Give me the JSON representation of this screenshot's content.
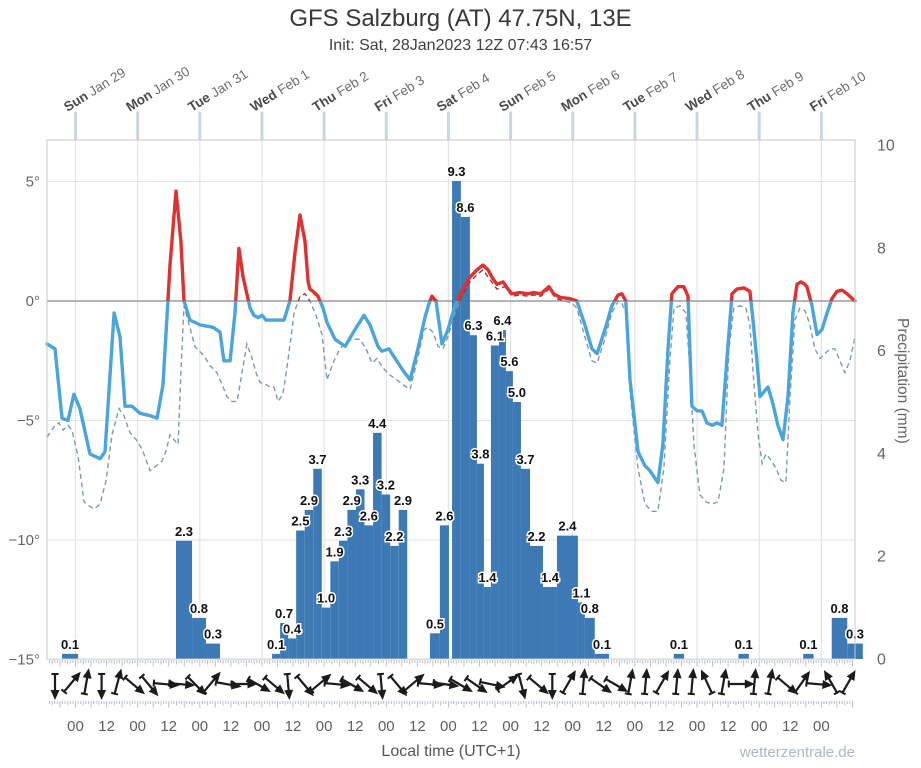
{
  "header": {
    "title": "GFS Salzburg (AT) 47.75N, 13E",
    "subtitle": "Init: Sat, 28Jan2023 12Z 07:43 16:57"
  },
  "footer": {
    "xlabel": "Local time (UTC+1)",
    "watermark": "wetterzentrale.de"
  },
  "axes": {
    "temp_tick_labels": [
      "5°",
      "0°",
      "−5°",
      "−10°",
      "−15°"
    ],
    "temp_tick_values": [
      5,
      0,
      -5,
      -10,
      -15
    ],
    "precip_tick_values": [
      10,
      8,
      6,
      4,
      2,
      0
    ],
    "precip_axis_label": "Precipitation (mm)",
    "time_tick_pattern": [
      "00",
      "12"
    ],
    "day_labels": [
      {
        "day": "Sun",
        "date": "Jan 29"
      },
      {
        "day": "Mon",
        "date": "Jan 30"
      },
      {
        "day": "Tue",
        "date": "Jan 31"
      },
      {
        "day": "Wed",
        "date": "Feb 1"
      },
      {
        "day": "Thu",
        "date": "Feb 2"
      },
      {
        "day": "Fri",
        "date": "Feb 3"
      },
      {
        "day": "Sat",
        "date": "Feb 4"
      },
      {
        "day": "Sun",
        "date": "Feb 5"
      },
      {
        "day": "Mon",
        "date": "Feb 6"
      },
      {
        "day": "Tue",
        "date": "Feb 7"
      },
      {
        "day": "Wed",
        "date": "Feb 8"
      },
      {
        "day": "Thu",
        "date": "Feb 9"
      },
      {
        "day": "Fri",
        "date": "Feb 10"
      }
    ]
  },
  "colors": {
    "temp_above": "#de3131",
    "temp_below": "#4aa5dc",
    "dew_above": "#a43636",
    "dew_below": "#7e99ad",
    "bar": "#3d7ab5",
    "grid": "#e3e3e3",
    "zero_line": "#9b9b9b",
    "border": "#c9c9c9",
    "day_stub": "#ccd6e2",
    "tick": "#b7c0c8",
    "arrow": "#1b1b1b"
  },
  "chart_data": {
    "type": "meteogram (line + bar)",
    "title": "GFS Salzburg (AT) 47.75N, 13E",
    "x_unit": "hours since Sun 29 Jan 2023 00:00 local time (UTC+1)",
    "x_range": [
      -11,
      301
    ],
    "temp_axis": {
      "unit": "°C",
      "ticks": [
        5,
        0,
        -5,
        -10,
        -15
      ]
    },
    "precip_axis": {
      "unit": "mm",
      "ticks": [
        10,
        8,
        6,
        4,
        2,
        0
      ],
      "range": [
        0,
        10
      ]
    },
    "temperature_2m": [
      [
        -11,
        -1.8
      ],
      [
        -7.9,
        -2.0
      ],
      [
        -5.2,
        -4.9
      ],
      [
        -2.9,
        -5.0
      ],
      [
        -0.6,
        -3.9
      ],
      [
        1.7,
        -4.5
      ],
      [
        5.6,
        -6.4
      ],
      [
        9.5,
        -6.6
      ],
      [
        11.4,
        -6.3
      ],
      [
        14.9,
        -0.5
      ],
      [
        17.2,
        -1.5
      ],
      [
        19.1,
        -4.4
      ],
      [
        21.8,
        -4.4
      ],
      [
        24.9,
        -4.7
      ],
      [
        28.8,
        -4.8
      ],
      [
        31.5,
        -4.9
      ],
      [
        33.8,
        -3.5
      ],
      [
        36.5,
        1.5
      ],
      [
        38.8,
        4.6
      ],
      [
        40.7,
        2.5
      ],
      [
        41.9,
        0.0
      ],
      [
        44.2,
        -0.8
      ],
      [
        48.1,
        -1.0
      ],
      [
        53.1,
        -1.1
      ],
      [
        55.8,
        -1.3
      ],
      [
        57.3,
        -2.5
      ],
      [
        59.7,
        -2.5
      ],
      [
        61.6,
        -0.5
      ],
      [
        63.1,
        2.2
      ],
      [
        64.7,
        1.0
      ],
      [
        67.4,
        -0.3
      ],
      [
        68.9,
        -0.6
      ],
      [
        70.5,
        -0.7
      ],
      [
        72.0,
        -0.6
      ],
      [
        73.6,
        -0.8
      ],
      [
        77.0,
        -0.8
      ],
      [
        80.5,
        -0.8
      ],
      [
        82.8,
        0.0
      ],
      [
        84.7,
        2.0
      ],
      [
        86.7,
        3.6
      ],
      [
        88.6,
        2.5
      ],
      [
        89.8,
        0.8
      ],
      [
        90.5,
        0.5
      ],
      [
        91.7,
        0.4
      ],
      [
        93.6,
        0.2
      ],
      [
        95.6,
        -0.3
      ],
      [
        97.1,
        -0.9
      ],
      [
        100.2,
        -1.6
      ],
      [
        104.1,
        -1.9
      ],
      [
        107.9,
        -1.2
      ],
      [
        111.4,
        -0.6
      ],
      [
        113.7,
        -1.0
      ],
      [
        116.8,
        -1.9
      ],
      [
        118.3,
        -2.1
      ],
      [
        121.0,
        -2.0
      ],
      [
        123.4,
        -2.4
      ],
      [
        126.4,
        -2.9
      ],
      [
        129.2,
        -3.3
      ],
      [
        132.2,
        -2.0
      ],
      [
        134.9,
        -0.7
      ],
      [
        136.5,
        -0.1
      ],
      [
        137.6,
        0.2
      ],
      [
        139.2,
        0.0
      ],
      [
        141.5,
        -1.8
      ],
      [
        143.8,
        -1.2
      ],
      [
        146.5,
        -0.2
      ],
      [
        149.2,
        0.4
      ],
      [
        152.3,
        1.0
      ],
      [
        155.0,
        1.3
      ],
      [
        157.3,
        1.5
      ],
      [
        159.3,
        1.3
      ],
      [
        160.8,
        1.0
      ],
      [
        162.7,
        0.7
      ],
      [
        165.1,
        0.8
      ],
      [
        167.0,
        0.5
      ],
      [
        168.5,
        0.3
      ],
      [
        171.6,
        0.35
      ],
      [
        174.7,
        0.3
      ],
      [
        177.0,
        0.35
      ],
      [
        179.7,
        0.3
      ],
      [
        182.8,
        0.6
      ],
      [
        184.7,
        0.3
      ],
      [
        187.1,
        0.15
      ],
      [
        190.9,
        0.1
      ],
      [
        193.6,
        0.0
      ],
      [
        196.7,
        -1.0
      ],
      [
        199.4,
        -2.0
      ],
      [
        201.4,
        -2.2
      ],
      [
        204.4,
        -1.2
      ],
      [
        207.1,
        -0.2
      ],
      [
        209.5,
        0.25
      ],
      [
        211.0,
        0.3
      ],
      [
        212.5,
        0.0
      ],
      [
        214.1,
        -3.3
      ],
      [
        217.2,
        -6.3
      ],
      [
        219.9,
        -6.9
      ],
      [
        221.8,
        -7.1
      ],
      [
        224.9,
        -7.6
      ],
      [
        226.8,
        -6.0
      ],
      [
        228.8,
        -2.0
      ],
      [
        230.3,
        0.3
      ],
      [
        232.6,
        0.6
      ],
      [
        234.9,
        0.6
      ],
      [
        236.5,
        0.2
      ],
      [
        238.0,
        -4.4
      ],
      [
        240.0,
        -4.6
      ],
      [
        241.9,
        -4.6
      ],
      [
        243.8,
        -5.1
      ],
      [
        245.8,
        -5.2
      ],
      [
        247.7,
        -5.1
      ],
      [
        249.6,
        -5.2
      ],
      [
        251.5,
        -2.5
      ],
      [
        253.5,
        0.3
      ],
      [
        255.4,
        0.5
      ],
      [
        258.1,
        0.55
      ],
      [
        260.4,
        0.4
      ],
      [
        261.6,
        -0.8
      ],
      [
        263.1,
        -2.5
      ],
      [
        264.3,
        -4.0
      ],
      [
        265.8,
        -3.8
      ],
      [
        267.4,
        -3.6
      ],
      [
        269.3,
        -4.3
      ],
      [
        271.2,
        -5.2
      ],
      [
        273.2,
        -5.8
      ],
      [
        275.1,
        -4.0
      ],
      [
        277.0,
        -0.5
      ],
      [
        278.6,
        0.7
      ],
      [
        280.1,
        0.8
      ],
      [
        281.7,
        0.7
      ],
      [
        282.4,
        0.6
      ],
      [
        284.4,
        -0.2
      ],
      [
        286.3,
        -1.4
      ],
      [
        288.2,
        -1.2
      ],
      [
        290.2,
        -0.5
      ],
      [
        292.1,
        0.1
      ],
      [
        294.0,
        0.4
      ],
      [
        296.0,
        0.45
      ],
      [
        297.9,
        0.3
      ],
      [
        299.4,
        0.15
      ],
      [
        301.0,
        0.0
      ]
    ],
    "dewpoint_2m": [
      [
        -11,
        -5.7
      ],
      [
        -7.9,
        -5.2
      ],
      [
        -6.4,
        -5.1
      ],
      [
        -4.8,
        -5.4
      ],
      [
        -2.9,
        -5.2
      ],
      [
        -1.4,
        -5.4
      ],
      [
        1.0,
        -6.5
      ],
      [
        3.3,
        -8.4
      ],
      [
        5.6,
        -8.6
      ],
      [
        7.1,
        -8.7
      ],
      [
        9.5,
        -8.5
      ],
      [
        11.8,
        -7.5
      ],
      [
        14.1,
        -5.6
      ],
      [
        16.8,
        -4.5
      ],
      [
        18.7,
        -4.8
      ],
      [
        21.0,
        -5.5
      ],
      [
        23.4,
        -5.8
      ],
      [
        25.7,
        -6.2
      ],
      [
        28.8,
        -7.1
      ],
      [
        31.1,
        -6.9
      ],
      [
        33.4,
        -6.7
      ],
      [
        34.9,
        -6.3
      ],
      [
        36.5,
        -5.6
      ],
      [
        38.0,
        -5.8
      ],
      [
        39.6,
        -6.0
      ],
      [
        40.7,
        -3.0
      ],
      [
        41.9,
        -0.2
      ],
      [
        43.4,
        -0.8
      ],
      [
        46.1,
        -1.9
      ],
      [
        49.6,
        -2.3
      ],
      [
        51.9,
        -2.7
      ],
      [
        54.6,
        -3.0
      ],
      [
        56.6,
        -3.5
      ],
      [
        58.5,
        -4.0
      ],
      [
        60.4,
        -4.2
      ],
      [
        62.4,
        -4.2
      ],
      [
        64.3,
        -3.0
      ],
      [
        66.2,
        -1.8
      ],
      [
        68.2,
        -2.4
      ],
      [
        69.7,
        -3.0
      ],
      [
        71.2,
        -3.4
      ],
      [
        73.6,
        -3.5
      ],
      [
        75.1,
        -3.6
      ],
      [
        76.6,
        -3.6
      ],
      [
        78.2,
        -4.2
      ],
      [
        80.1,
        -3.9
      ],
      [
        82.0,
        -2.5
      ],
      [
        84.4,
        -0.5
      ],
      [
        86.7,
        0.2
      ],
      [
        88.6,
        0.3
      ],
      [
        90.5,
        0.0
      ],
      [
        92.9,
        -0.6
      ],
      [
        95.2,
        -1.4
      ],
      [
        97.1,
        -3.3
      ],
      [
        99.4,
        -2.6
      ],
      [
        102.1,
        -2.0
      ],
      [
        104.8,
        -1.7
      ],
      [
        106.8,
        -1.6
      ],
      [
        109.8,
        -1.6
      ],
      [
        112.2,
        -2.0
      ],
      [
        114.5,
        -2.6
      ],
      [
        116.4,
        -2.4
      ],
      [
        118.7,
        -2.8
      ],
      [
        121.4,
        -3.1
      ],
      [
        124.1,
        -3.3
      ],
      [
        126.4,
        -3.5
      ],
      [
        129.2,
        -3.7
      ],
      [
        131.9,
        -2.5
      ],
      [
        134.6,
        -1.2
      ],
      [
        136.1,
        -1.1
      ],
      [
        138.0,
        -1.3
      ],
      [
        140.0,
        -1.9
      ],
      [
        141.9,
        -2.0
      ],
      [
        143.8,
        -1.5
      ],
      [
        146.5,
        -0.5
      ],
      [
        149.2,
        0.2
      ],
      [
        152.3,
        0.8
      ],
      [
        155.0,
        1.1
      ],
      [
        157.3,
        1.3
      ],
      [
        160.0,
        0.9
      ],
      [
        162.7,
        0.5
      ],
      [
        165.8,
        0.6
      ],
      [
        168.5,
        0.2
      ],
      [
        171.6,
        0.25
      ],
      [
        174.7,
        0.2
      ],
      [
        177.0,
        0.25
      ],
      [
        179.7,
        0.2
      ],
      [
        182.8,
        0.5
      ],
      [
        185.5,
        0.1
      ],
      [
        189.0,
        0.0
      ],
      [
        191.7,
        -0.1
      ],
      [
        193.6,
        -0.3
      ],
      [
        196.7,
        -1.5
      ],
      [
        199.4,
        -2.5
      ],
      [
        201.4,
        -2.6
      ],
      [
        204.4,
        -1.6
      ],
      [
        207.1,
        -0.5
      ],
      [
        209.5,
        0.0
      ],
      [
        211.0,
        -0.1
      ],
      [
        212.5,
        -0.5
      ],
      [
        214.1,
        -3.8
      ],
      [
        217.2,
        -7.0
      ],
      [
        219.9,
        -8.5
      ],
      [
        222.6,
        -8.8
      ],
      [
        224.9,
        -8.8
      ],
      [
        227.2,
        -7.0
      ],
      [
        229.5,
        -2.5
      ],
      [
        231.1,
        -0.3
      ],
      [
        233.4,
        -0.2
      ],
      [
        235.7,
        -0.5
      ],
      [
        237.3,
        -3.0
      ],
      [
        238.8,
        -6.0
      ],
      [
        241.1,
        -8.1
      ],
      [
        243.4,
        -8.4
      ],
      [
        245.8,
        -8.5
      ],
      [
        248.1,
        -8.4
      ],
      [
        250.4,
        -7.0
      ],
      [
        252.3,
        -2.0
      ],
      [
        254.2,
        -0.3
      ],
      [
        256.6,
        -0.2
      ],
      [
        258.9,
        -0.3
      ],
      [
        260.4,
        -1.0
      ],
      [
        262.0,
        -3.5
      ],
      [
        263.5,
        -5.5
      ],
      [
        265.1,
        -6.8
      ],
      [
        266.6,
        -6.4
      ],
      [
        268.2,
        -6.6
      ],
      [
        270.5,
        -7.0
      ],
      [
        272.4,
        -7.5
      ],
      [
        274.3,
        -7.6
      ],
      [
        275.9,
        -4.0
      ],
      [
        277.8,
        -0.8
      ],
      [
        279.7,
        -0.3
      ],
      [
        281.7,
        -0.4
      ],
      [
        283.6,
        -1.0
      ],
      [
        285.5,
        -2.0
      ],
      [
        287.5,
        -2.4
      ],
      [
        289.4,
        -2.2
      ],
      [
        291.3,
        -2.0
      ],
      [
        293.2,
        -2.0
      ],
      [
        295.2,
        -2.5
      ],
      [
        297.1,
        -3.0
      ],
      [
        299.0,
        -2.5
      ],
      [
        301.0,
        -1.5
      ]
    ],
    "precip_bars": [
      [
        -5.2,
        6.2,
        0.1
      ],
      [
        38.8,
        6.2,
        2.3
      ],
      [
        45.0,
        5.4,
        0.8
      ],
      [
        50.4,
        5.4,
        0.3
      ],
      [
        75.9,
        3.1,
        0.1
      ],
      [
        79.0,
        3.1,
        0.7
      ],
      [
        82.1,
        3.1,
        0.4
      ],
      [
        85.2,
        3.3,
        2.5
      ],
      [
        88.5,
        3.3,
        2.9
      ],
      [
        91.8,
        3.3,
        3.7
      ],
      [
        95.1,
        3.3,
        1.0
      ],
      [
        98.4,
        3.3,
        1.9
      ],
      [
        101.7,
        3.3,
        2.3
      ],
      [
        105.0,
        3.3,
        2.9
      ],
      [
        108.3,
        3.3,
        3.3
      ],
      [
        111.6,
        3.3,
        2.6
      ],
      [
        114.9,
        3.3,
        4.4
      ],
      [
        118.2,
        3.3,
        3.2
      ],
      [
        121.5,
        3.3,
        2.2
      ],
      [
        124.8,
        3.3,
        2.9
      ],
      [
        136.9,
        3.8,
        0.5
      ],
      [
        140.7,
        3.5,
        2.6
      ],
      [
        145.4,
        3.4,
        9.3
      ],
      [
        148.8,
        3.5,
        8.6
      ],
      [
        152.3,
        2.7,
        6.3
      ],
      [
        155.0,
        2.7,
        3.8
      ],
      [
        157.7,
        2.7,
        1.4
      ],
      [
        160.4,
        3.1,
        6.1
      ],
      [
        163.5,
        2.7,
        6.4
      ],
      [
        166.2,
        2.7,
        5.6
      ],
      [
        168.9,
        3.1,
        5.0
      ],
      [
        172.0,
        3.5,
        3.7
      ],
      [
        175.5,
        5.0,
        2.2
      ],
      [
        180.5,
        5.4,
        1.4
      ],
      [
        185.9,
        8.1,
        2.4
      ],
      [
        194.0,
        2.7,
        1.1
      ],
      [
        196.7,
        3.8,
        0.8
      ],
      [
        200.5,
        5.5,
        0.1
      ],
      [
        231.0,
        4.0,
        0.1
      ],
      [
        256.0,
        4.0,
        0.1
      ],
      [
        281.0,
        4.0,
        0.1
      ],
      [
        292.0,
        6.0,
        0.8
      ],
      [
        298.0,
        6.0,
        0.3
      ]
    ],
    "wind_arrow_angles_deg": [
      90,
      -50,
      -80,
      90,
      -75,
      40,
      50,
      5,
      5,
      45,
      -50,
      10,
      0,
      30,
      40,
      85,
      50,
      -40,
      5,
      30,
      40,
      85,
      50,
      -40,
      5,
      8,
      30,
      35,
      12,
      -35,
      75,
      40,
      90,
      -60,
      -85,
      35,
      30,
      -80,
      -85,
      -60,
      -85,
      -85,
      -115,
      -80,
      0,
      -85,
      -80,
      40,
      -55,
      5,
      -120,
      -60
    ],
    "wind_arrow_convention": "0 = pointing right (east), 90 = pointing down"
  }
}
